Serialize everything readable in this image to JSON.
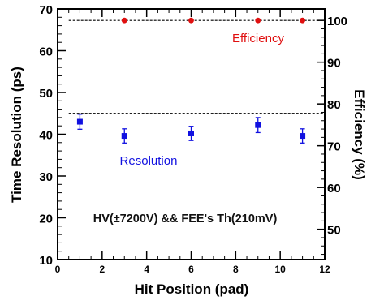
{
  "chart_data": {
    "type": "scatter",
    "xlabel": "Hit Position (pad)",
    "ylabel": "Time Resolution (ps)",
    "y2label": "Efficiency (%)",
    "xlim": [
      0,
      12
    ],
    "ylim": [
      10,
      70
    ],
    "y2lim": [
      42.75,
      102.75
    ],
    "x_ticks": [
      0,
      2,
      4,
      6,
      8,
      10,
      12
    ],
    "y_ticks": [
      10,
      20,
      30,
      40,
      50,
      60,
      70
    ],
    "y2_ticks": [
      50,
      60,
      70,
      80,
      90,
      100
    ],
    "grid": false,
    "series": [
      {
        "name": "Resolution",
        "axis": "left",
        "marker": "square",
        "color": "#1010e0",
        "x": [
          1,
          3,
          6,
          9,
          11
        ],
        "y": [
          43.0,
          39.6,
          40.2,
          42.2,
          39.6
        ],
        "yerr": [
          1.8,
          1.7,
          1.7,
          1.8,
          1.7
        ]
      },
      {
        "name": "Efficiency",
        "axis": "right",
        "marker": "circle",
        "color": "#e01010",
        "x": [
          3,
          6,
          9,
          11
        ],
        "y": [
          100,
          100,
          100,
          100
        ]
      }
    ],
    "reference_lines": [
      {
        "axis": "left",
        "y": 45
      },
      {
        "axis": "right",
        "y": 100
      }
    ],
    "annotations": [
      {
        "text": "Efficiency",
        "color": "#e01010"
      },
      {
        "text": "Resolution",
        "color": "#1010e0"
      },
      {
        "text": "HV(±7200V) && FEE's Th(210mV)",
        "color": "#111111"
      }
    ]
  }
}
